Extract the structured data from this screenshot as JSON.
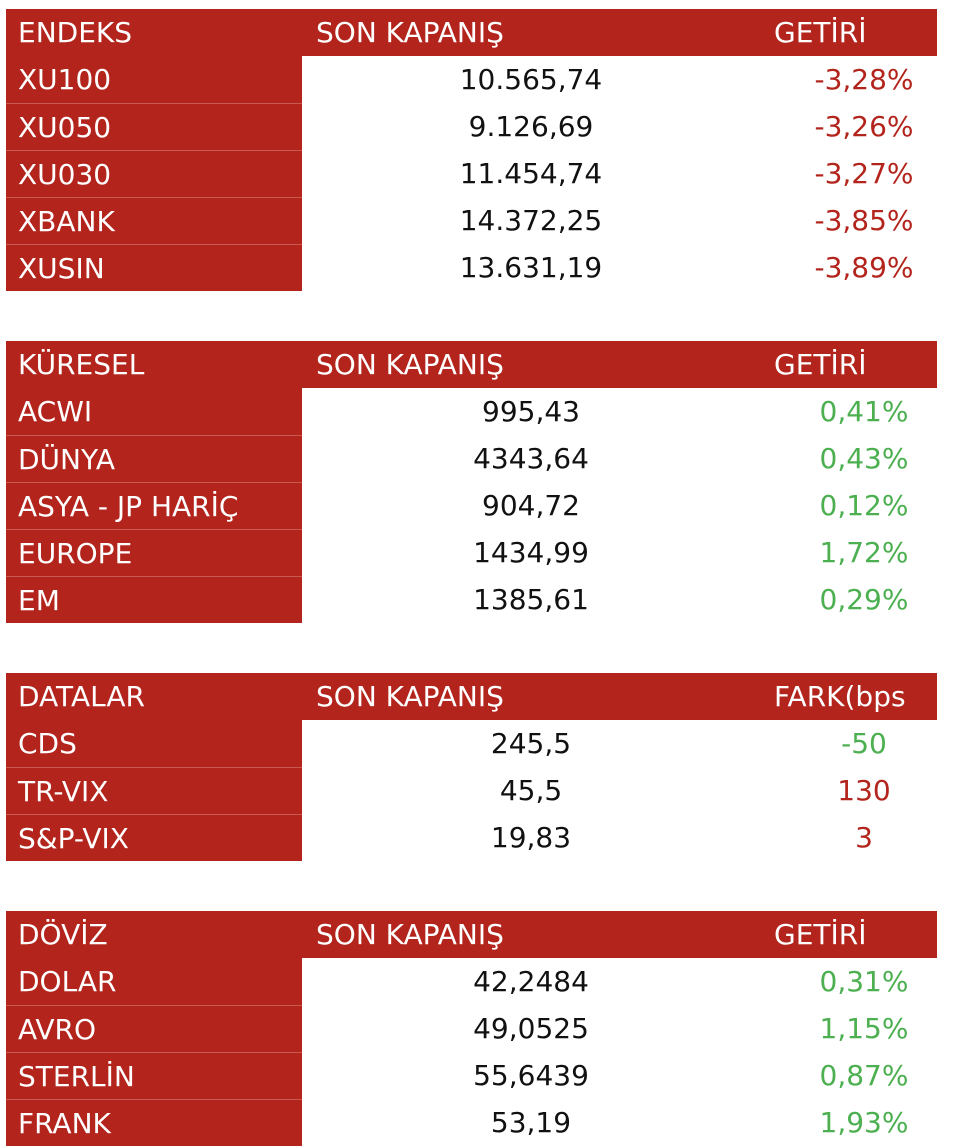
{
  "colors": {
    "header_bg": "#b3241c",
    "negative": "#b3241c",
    "positive": "#4caf50"
  },
  "tables": [
    {
      "headers": [
        "ENDEKS",
        "SON KAPANIŞ",
        "GETİRİ"
      ],
      "rows": [
        {
          "name": "XU100",
          "value": "10.565,74",
          "change": "-3,28%",
          "direction": "negative"
        },
        {
          "name": "XU050",
          "value": "9.126,69",
          "change": "-3,26%",
          "direction": "negative"
        },
        {
          "name": "XU030",
          "value": "11.454,74",
          "change": "-3,27%",
          "direction": "negative"
        },
        {
          "name": "XBANK",
          "value": "14.372,25",
          "change": "-3,85%",
          "direction": "negative"
        },
        {
          "name": "XUSIN",
          "value": "13.631,19",
          "change": "-3,89%",
          "direction": "negative"
        }
      ]
    },
    {
      "headers": [
        "KÜRESEL",
        "SON KAPANIŞ",
        "GETİRİ"
      ],
      "rows": [
        {
          "name": "ACWI",
          "value": "995,43",
          "change": "0,41%",
          "direction": "positive"
        },
        {
          "name": "DÜNYA",
          "value": "4343,64",
          "change": "0,43%",
          "direction": "positive"
        },
        {
          "name": "ASYA - JP HARİÇ",
          "value": "904,72",
          "change": "0,12%",
          "direction": "positive"
        },
        {
          "name": "EUROPE",
          "value": "1434,99",
          "change": "1,72%",
          "direction": "positive"
        },
        {
          "name": "EM",
          "value": "1385,61",
          "change": "0,29%",
          "direction": "positive"
        }
      ]
    },
    {
      "headers": [
        "DATALAR",
        "SON KAPANIŞ",
        "FARK(bps"
      ],
      "rows": [
        {
          "name": "CDS",
          "value": "245,5",
          "change": "-50",
          "direction": "positive"
        },
        {
          "name": "TR-VIX",
          "value": "45,5",
          "change": "130",
          "direction": "negative"
        },
        {
          "name": "S&P-VIX",
          "value": "19,83",
          "change": "3",
          "direction": "negative"
        }
      ]
    },
    {
      "headers": [
        "DÖVİZ",
        "SON KAPANIŞ",
        "GETİRİ"
      ],
      "rows": [
        {
          "name": "DOLAR",
          "value": "42,2484",
          "change": "0,31%",
          "direction": "positive"
        },
        {
          "name": "AVRO",
          "value": "49,0525",
          "change": "1,15%",
          "direction": "positive"
        },
        {
          "name": "STERLİN",
          "value": "55,6439",
          "change": "0,87%",
          "direction": "positive"
        },
        {
          "name": "FRANK",
          "value": "53,19",
          "change": "1,93%",
          "direction": "positive"
        }
      ]
    }
  ]
}
